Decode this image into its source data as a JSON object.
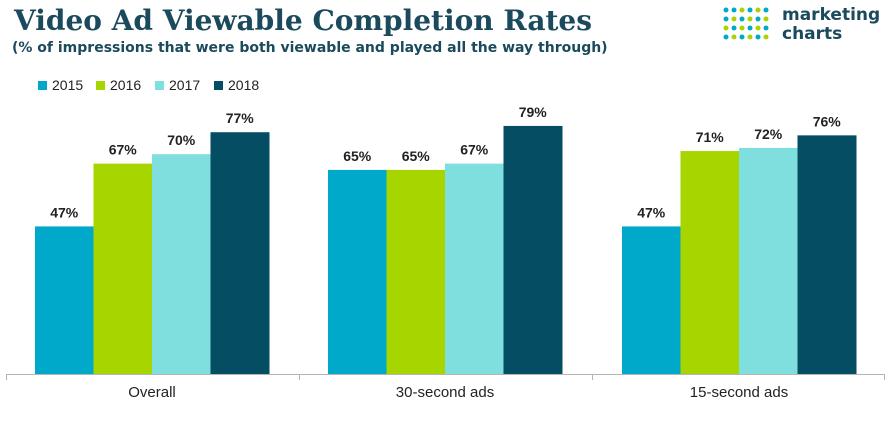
{
  "title": "Video Ad Viewable Completion Rates",
  "subtitle": "(% of impressions that were both viewable and played all the way through)",
  "brand": {
    "line1": "marketing",
    "line2": "charts"
  },
  "colors": {
    "2015": "#00a9c9",
    "2016": "#a7d500",
    "2017": "#7fdede",
    "2018": "#044d63",
    "text": "#1a4a5c"
  },
  "chart_data": {
    "type": "bar",
    "categories": [
      "Overall",
      "30-second ads",
      "15-second ads"
    ],
    "series": [
      {
        "name": "2015",
        "values": [
          47,
          65,
          47
        ],
        "labels": [
          "47%",
          "65%",
          "47%"
        ]
      },
      {
        "name": "2016",
        "values": [
          67,
          65,
          71
        ],
        "labels": [
          "67%",
          "65%",
          "71%"
        ]
      },
      {
        "name": "2017",
        "values": [
          70,
          67,
          72
        ],
        "labels": [
          "70%",
          "67%",
          "72%"
        ]
      },
      {
        "name": "2018",
        "values": [
          77,
          79,
          76
        ],
        "labels": [
          "77%",
          "79%",
          "76%"
        ]
      }
    ],
    "ylim": [
      0,
      100
    ],
    "grid": false,
    "legend_position": "top-left"
  }
}
